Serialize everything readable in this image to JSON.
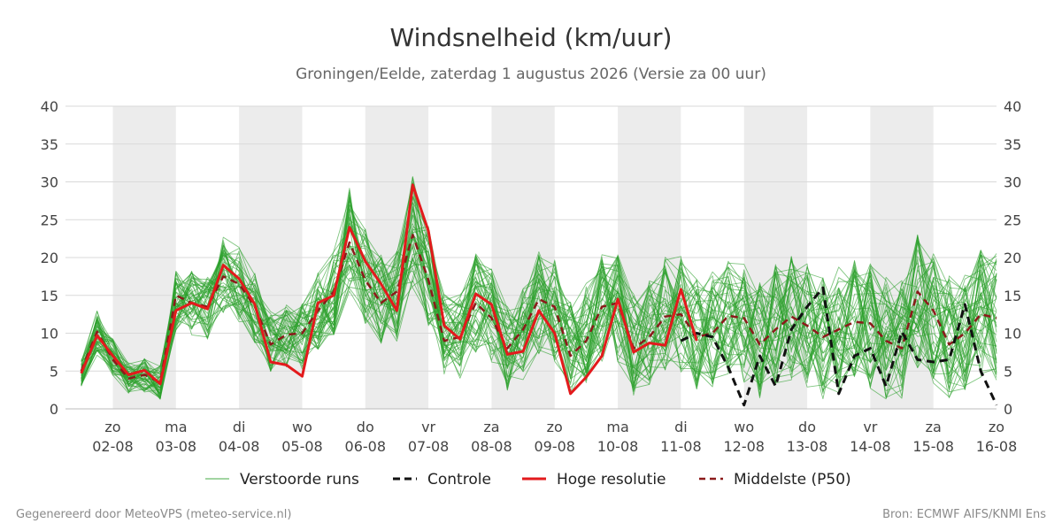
{
  "chart_data": {
    "type": "line",
    "title": "Windsnelheid (km/uur)",
    "subtitle": "Groningen/Eelde, zaterdag  1 augustus 2026 (Versie za 00 uur)",
    "ylim": [
      0,
      40
    ],
    "yticks": [
      0,
      5,
      10,
      15,
      20,
      25,
      30,
      35,
      40
    ],
    "x_range_days": [
      1.25,
      16.0
    ],
    "x_ticks": [
      {
        "day": 2,
        "dow": "zo",
        "date": "02-08"
      },
      {
        "day": 3,
        "dow": "ma",
        "date": "03-08"
      },
      {
        "day": 4,
        "dow": "di",
        "date": "04-08"
      },
      {
        "day": 5,
        "dow": "wo",
        "date": "05-08"
      },
      {
        "day": 6,
        "dow": "do",
        "date": "06-08"
      },
      {
        "day": 7,
        "dow": "vr",
        "date": "07-08"
      },
      {
        "day": 8,
        "dow": "za",
        "date": "08-08"
      },
      {
        "day": 9,
        "dow": "zo",
        "date": "09-08"
      },
      {
        "day": 10,
        "dow": "ma",
        "date": "10-08"
      },
      {
        "day": 11,
        "dow": "di",
        "date": "11-08"
      },
      {
        "day": 12,
        "dow": "wo",
        "date": "12-08"
      },
      {
        "day": 13,
        "dow": "do",
        "date": "13-08"
      },
      {
        "day": 14,
        "dow": "vr",
        "date": "14-08"
      },
      {
        "day": 15,
        "dow": "za",
        "date": "15-08"
      },
      {
        "day": 16,
        "dow": "zo",
        "date": "16-08"
      }
    ],
    "shaded_days": [
      [
        2,
        3
      ],
      [
        4,
        5
      ],
      [
        6,
        7
      ],
      [
        8,
        9
      ],
      [
        10,
        11
      ],
      [
        12,
        13
      ],
      [
        14,
        15
      ]
    ],
    "grid": true,
    "legend_position": "bottom",
    "series": [
      {
        "name": "Hoge resolutie",
        "color": "#e31a1c",
        "style": "solid",
        "x": [
          1.5,
          1.75,
          2.0,
          2.25,
          2.5,
          2.75,
          3.0,
          3.25,
          3.5,
          3.75,
          4.0,
          4.25,
          4.5,
          4.75,
          5.0,
          5.25,
          5.5,
          5.75,
          6.0,
          6.25,
          6.5,
          6.75,
          7.0,
          7.25,
          7.5,
          7.75,
          8.0,
          8.25,
          8.5,
          8.75,
          9.0,
          9.25,
          9.5,
          9.75,
          10.0,
          10.25,
          10.5,
          10.75,
          11.0,
          11.25
        ],
        "y": [
          4.7,
          9.7,
          7.0,
          4.5,
          5.1,
          3.3,
          13.0,
          14.0,
          13.2,
          19.0,
          17.2,
          13.8,
          6.2,
          5.8,
          4.3,
          14.0,
          15.0,
          24.0,
          19.5,
          16.5,
          13.0,
          29.6,
          23.5,
          11.0,
          9.2,
          15.2,
          13.8,
          7.2,
          7.6,
          13.0,
          10.0,
          2.0,
          4.2,
          7.0,
          14.5,
          7.5,
          8.7,
          8.4,
          15.8,
          9.0
        ]
      },
      {
        "name": "Controle",
        "color": "#111111",
        "style": "dashed",
        "x": [
          11.0,
          11.25,
          11.5,
          11.75,
          12.0,
          12.25,
          12.5,
          12.75,
          13.0,
          13.25,
          13.5,
          13.75,
          14.0,
          14.25,
          14.5,
          14.75,
          15.0,
          15.25,
          15.5,
          15.75,
          16.0
        ],
        "y": [
          9.0,
          10.0,
          9.5,
          5.5,
          0.5,
          7.0,
          3.0,
          10.5,
          13.5,
          16.0,
          2.0,
          7.0,
          8.0,
          3.0,
          10.2,
          6.5,
          6.2,
          6.5,
          13.8,
          5.0,
          0.5
        ]
      },
      {
        "name": "Middelste (P50)",
        "color": "#8b1a1a",
        "style": "dashed",
        "x": [
          1.5,
          1.75,
          2.0,
          2.25,
          2.5,
          2.75,
          3.0,
          3.25,
          3.5,
          3.75,
          4.0,
          4.25,
          4.5,
          4.75,
          5.0,
          5.25,
          5.5,
          5.75,
          6.0,
          6.25,
          6.5,
          6.75,
          7.0,
          7.25,
          7.5,
          7.75,
          8.0,
          8.25,
          8.5,
          8.75,
          9.0,
          9.25,
          9.5,
          9.75,
          10.0,
          10.25,
          10.5,
          10.75,
          11.0,
          11.25,
          11.5,
          11.75,
          12.0,
          12.25,
          12.5,
          12.75,
          13.0,
          13.25,
          13.5,
          13.75,
          14.0,
          14.25,
          14.5,
          14.75,
          15.0,
          15.25,
          15.5,
          15.75,
          16.0
        ],
        "y": [
          5.0,
          10.2,
          6.5,
          4.0,
          4.5,
          3.5,
          15.0,
          14.0,
          13.5,
          17.5,
          16.5,
          13.5,
          8.5,
          9.8,
          10.0,
          13.0,
          15.5,
          22.0,
          17.0,
          14.0,
          15.5,
          23.0,
          17.0,
          9.0,
          9.5,
          14.0,
          12.0,
          8.0,
          10.5,
          14.5,
          13.5,
          7.0,
          9.0,
          13.5,
          14.0,
          8.0,
          9.5,
          12.2,
          12.5,
          9.5,
          10.0,
          12.3,
          12.0,
          8.5,
          10.5,
          12.2,
          11.0,
          9.5,
          10.5,
          11.5,
          11.3,
          9.0,
          8.0,
          15.5,
          13.0,
          8.5,
          10.0,
          12.5,
          12.0
        ]
      }
    ],
    "ensemble": {
      "name": "Verstoorde runs",
      "color": "#2ca02c",
      "members": 50,
      "x_start_day": 1.5,
      "x_step_days": 0.25,
      "mean": [
        4.8,
        10.0,
        6.8,
        4.0,
        4.5,
        3.5,
        14.0,
        14.0,
        13.5,
        17.5,
        16.5,
        13.5,
        9.0,
        9.5,
        9.5,
        13.0,
        15.5,
        22.5,
        17.5,
        14.5,
        15.0,
        23.5,
        17.5,
        10.0,
        9.5,
        14.0,
        12.5,
        8.0,
        10.0,
        14.0,
        13.0,
        8.0,
        10.0,
        13.5,
        13.5,
        8.5,
        10.0,
        12.5,
        12.5,
        10.0,
        10.5,
        12.0,
        11.5,
        9.0,
        11.0,
        12.0,
        11.0,
        9.5,
        10.5,
        11.5,
        11.0,
        9.5,
        9.0,
        14.0,
        12.0,
        9.5,
        10.5,
        12.5,
        12.0
      ]
    }
  },
  "legend": {
    "ensemble_label": "Verstoorde runs",
    "control_label": "Controle",
    "hires_label": "Hoge resolutie",
    "median_label": "Middelste (P50)"
  },
  "footer": {
    "left": "Gegenereerd door MeteoVPS (meteo-service.nl)",
    "right": "Bron: ECMWF AIFS/KNMI Ens"
  }
}
